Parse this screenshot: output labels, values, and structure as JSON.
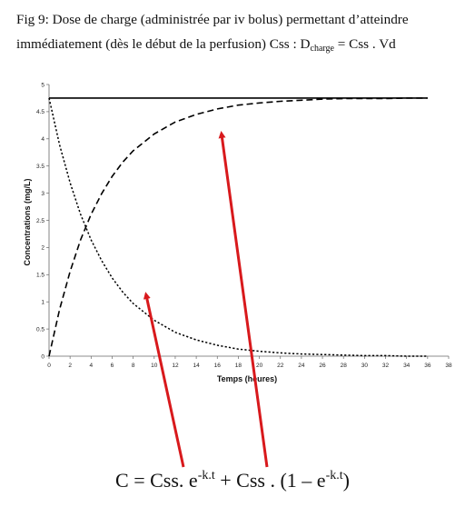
{
  "caption": {
    "line1": "Fig 9: Dose de charge (administrée par iv bolus) permettant d’atteindre",
    "line2_prefix": "immédiatement (dès le début de la perfusion) Css :  D",
    "line2_sub": "charge",
    "line2_suffix": " = Css . Vd"
  },
  "formula": {
    "p1": "C = Css. e",
    "e1": "-k.t",
    "p2": " + Css . (1 – e",
    "e2": "-k.t",
    "p3": ")"
  },
  "colors": {
    "arrow": "#d8191c",
    "curve": "#000000"
  },
  "chart_data": {
    "type": "line",
    "xlabel": "Temps (heures)",
    "ylabel": "Concentrations (mg/L)",
    "xlim": [
      0,
      38
    ],
    "ylim": [
      0,
      5
    ],
    "x_ticks": [
      "0",
      "2",
      "4",
      "6",
      "8",
      "10",
      "12",
      "14",
      "16",
      "18",
      "20",
      "22",
      "24",
      "26",
      "28",
      "30",
      "32",
      "34",
      "36",
      "38"
    ],
    "y_ticks": [
      "0",
      "0.5",
      "1",
      "1.5",
      "2",
      "2.5",
      "3",
      "3.5",
      "4",
      "4.5",
      "5"
    ],
    "grid": false,
    "legend": "none",
    "series": [
      {
        "style": "solid",
        "x": [
          0,
          36
        ],
        "y": [
          4.75,
          4.75
        ]
      },
      {
        "style": "dashed",
        "x": [
          0,
          1,
          2,
          3,
          4,
          5,
          6,
          7,
          8,
          10,
          12,
          14,
          16,
          18,
          20,
          22,
          24,
          26,
          28,
          30,
          32,
          34,
          36
        ],
        "y": [
          0,
          0.86,
          1.56,
          2.14,
          2.61,
          2.99,
          3.31,
          3.57,
          3.78,
          4.09,
          4.31,
          4.45,
          4.55,
          4.62,
          4.66,
          4.69,
          4.71,
          4.73,
          4.74,
          4.74,
          4.74,
          4.75,
          4.75
        ]
      },
      {
        "style": "dotted",
        "x": [
          0,
          1,
          2,
          3,
          4,
          5,
          6,
          7,
          8,
          10,
          12,
          14,
          16,
          18,
          20,
          22,
          24,
          26,
          28,
          30,
          32,
          34,
          36
        ],
        "y": [
          4.75,
          3.89,
          3.19,
          2.61,
          2.14,
          1.76,
          1.44,
          1.18,
          0.97,
          0.66,
          0.44,
          0.3,
          0.2,
          0.13,
          0.09,
          0.06,
          0.04,
          0.03,
          0.02,
          0.01,
          0.01,
          0.0,
          0.0
        ]
      }
    ]
  }
}
